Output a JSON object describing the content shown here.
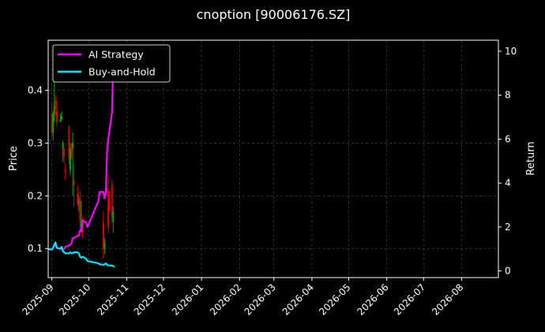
{
  "chart_data": {
    "type": "candlestick-with-lines",
    "title": "cnoption [90006176.SZ]",
    "ylabel_left": "Price",
    "ylabel_right": "Return",
    "ylim_left": [
      0.045,
      0.495
    ],
    "ylim_right": [
      -0.3,
      10.5
    ],
    "xlim": [
      "2025-08-29",
      "2026-08-31"
    ],
    "yticks_left": [
      0.1,
      0.2,
      0.3,
      0.4
    ],
    "ytick_labels_left": [
      "0.1",
      "0.2",
      "0.3",
      "0.4"
    ],
    "yticks_right": [
      0,
      2,
      4,
      6,
      8,
      10
    ],
    "ytick_labels_right": [
      "0",
      "2",
      "4",
      "6",
      "8",
      "10"
    ],
    "xticks": [
      "2025-09-01",
      "2025-10-01",
      "2025-11-01",
      "2025-12-01",
      "2026-01-01",
      "2026-02-01",
      "2026-03-01",
      "2026-04-01",
      "2026-05-01",
      "2026-06-01",
      "2026-07-01",
      "2026-08-01"
    ],
    "xtick_labels": [
      "2025-09",
      "2025-10",
      "2025-11",
      "2025-12",
      "2026-01",
      "2026-02",
      "2026-03",
      "2026-04",
      "2026-05",
      "2026-06",
      "2026-07",
      "2026-08"
    ],
    "grid": true,
    "legend_position": "top-left",
    "colors": {
      "background": "#000000",
      "text": "#ffffff",
      "grid": "#4d4d4d",
      "up": "#00aa00",
      "down": "#dd0000",
      "ai": "#ff00ff",
      "bh": "#00e5ff"
    },
    "series": [
      {
        "name": "AI Strategy",
        "axis": "right",
        "points": [
          [
            "2025-08-29",
            1.0
          ],
          [
            "2025-09-01",
            1.0
          ],
          [
            "2025-09-02",
            1.05
          ],
          [
            "2025-09-03",
            1.15
          ],
          [
            "2025-09-04",
            1.22
          ],
          [
            "2025-09-05",
            1.05
          ],
          [
            "2025-09-08",
            1.0
          ],
          [
            "2025-09-09",
            1.0
          ],
          [
            "2025-09-10",
            1.0
          ],
          [
            "2025-09-11",
            1.0
          ],
          [
            "2025-09-12",
            1.1
          ],
          [
            "2025-09-15",
            1.15
          ],
          [
            "2025-09-16",
            1.2
          ],
          [
            "2025-09-17",
            1.25
          ],
          [
            "2025-09-18",
            1.5
          ],
          [
            "2025-09-19",
            1.5
          ],
          [
            "2025-09-22",
            1.6
          ],
          [
            "2025-09-23",
            1.6
          ],
          [
            "2025-09-24",
            1.85
          ],
          [
            "2025-09-25",
            1.8
          ],
          [
            "2025-09-26",
            2.3
          ],
          [
            "2025-09-29",
            2.2
          ],
          [
            "2025-09-30",
            2.0
          ],
          [
            "2025-10-09",
            3.2
          ],
          [
            "2025-10-10",
            3.6
          ],
          [
            "2025-10-13",
            3.6
          ],
          [
            "2025-10-14",
            3.3
          ],
          [
            "2025-10-15",
            3.6
          ],
          [
            "2025-10-16",
            5.5
          ],
          [
            "2025-10-17",
            6.0
          ],
          [
            "2025-10-20",
            7.2
          ],
          [
            "2025-10-21",
            9.5
          ],
          [
            "2025-10-22",
            10.0
          ]
        ]
      },
      {
        "name": "Buy-and-Hold",
        "axis": "right",
        "points": [
          [
            "2025-08-29",
            1.0
          ],
          [
            "2025-09-01",
            0.97
          ],
          [
            "2025-09-02",
            1.05
          ],
          [
            "2025-09-03",
            1.2
          ],
          [
            "2025-09-04",
            1.3
          ],
          [
            "2025-09-05",
            1.05
          ],
          [
            "2025-09-08",
            1.02
          ],
          [
            "2025-09-09",
            1.1
          ],
          [
            "2025-09-10",
            0.9
          ],
          [
            "2025-09-11",
            0.85
          ],
          [
            "2025-09-12",
            0.8
          ],
          [
            "2025-09-15",
            0.8
          ],
          [
            "2025-09-16",
            0.85
          ],
          [
            "2025-09-17",
            0.8
          ],
          [
            "2025-09-18",
            0.8
          ],
          [
            "2025-09-19",
            0.85
          ],
          [
            "2025-09-22",
            0.85
          ],
          [
            "2025-09-23",
            0.8
          ],
          [
            "2025-09-24",
            0.65
          ],
          [
            "2025-09-25",
            0.6
          ],
          [
            "2025-09-26",
            0.65
          ],
          [
            "2025-09-29",
            0.55
          ],
          [
            "2025-09-30",
            0.45
          ],
          [
            "2025-10-09",
            0.35
          ],
          [
            "2025-10-10",
            0.3
          ],
          [
            "2025-10-13",
            0.28
          ],
          [
            "2025-10-14",
            0.3
          ],
          [
            "2025-10-15",
            0.35
          ],
          [
            "2025-10-16",
            0.28
          ],
          [
            "2025-10-17",
            0.25
          ],
          [
            "2025-10-20",
            0.25
          ],
          [
            "2025-10-21",
            0.22
          ],
          [
            "2025-10-22",
            0.18
          ]
        ]
      }
    ],
    "ohlc": [
      {
        "date": "2025-09-01",
        "open": 0.355,
        "high": 0.375,
        "low": 0.31,
        "close": 0.32
      },
      {
        "date": "2025-09-02",
        "open": 0.32,
        "high": 0.36,
        "low": 0.305,
        "close": 0.355
      },
      {
        "date": "2025-09-03",
        "open": 0.355,
        "high": 0.42,
        "low": 0.34,
        "close": 0.37
      },
      {
        "date": "2025-09-04",
        "open": 0.38,
        "high": 0.39,
        "low": 0.35,
        "close": 0.365
      },
      {
        "date": "2025-09-05",
        "open": 0.36,
        "high": 0.38,
        "low": 0.33,
        "close": 0.34
      },
      {
        "date": "2025-09-08",
        "open": 0.34,
        "high": 0.355,
        "low": 0.34,
        "close": 0.345
      },
      {
        "date": "2025-09-09",
        "open": 0.345,
        "high": 0.36,
        "low": 0.345,
        "close": 0.35
      },
      {
        "date": "2025-09-10",
        "open": 0.29,
        "high": 0.305,
        "low": 0.265,
        "close": 0.3
      },
      {
        "date": "2025-09-11",
        "open": 0.29,
        "high": 0.29,
        "low": 0.26,
        "close": 0.275
      },
      {
        "date": "2025-09-12",
        "open": 0.25,
        "high": 0.26,
        "low": 0.23,
        "close": 0.245
      },
      {
        "date": "2025-09-15",
        "open": 0.33,
        "high": 0.335,
        "low": 0.26,
        "close": 0.27
      },
      {
        "date": "2025-09-16",
        "open": 0.25,
        "high": 0.3,
        "low": 0.24,
        "close": 0.29
      },
      {
        "date": "2025-09-17",
        "open": 0.29,
        "high": 0.3,
        "low": 0.27,
        "close": 0.285
      },
      {
        "date": "2025-09-18",
        "open": 0.29,
        "high": 0.32,
        "low": 0.2,
        "close": 0.3
      },
      {
        "date": "2025-09-19",
        "open": 0.23,
        "high": 0.26,
        "low": 0.18,
        "close": 0.22
      },
      {
        "date": "2025-09-22",
        "open": 0.205,
        "high": 0.22,
        "low": 0.18,
        "close": 0.185
      },
      {
        "date": "2025-09-23",
        "open": 0.185,
        "high": 0.2,
        "low": 0.17,
        "close": 0.19
      },
      {
        "date": "2025-09-24",
        "open": 0.195,
        "high": 0.21,
        "low": 0.13,
        "close": 0.15
      },
      {
        "date": "2025-09-25",
        "open": 0.14,
        "high": 0.19,
        "low": 0.13,
        "close": 0.15
      },
      {
        "date": "2025-09-26",
        "open": 0.15,
        "high": 0.16,
        "low": 0.12,
        "close": 0.125
      },
      {
        "date": "2025-10-13",
        "open": 0.15,
        "high": 0.17,
        "low": 0.08,
        "close": 0.1
      },
      {
        "date": "2025-10-14",
        "open": 0.1,
        "high": 0.12,
        "low": 0.09,
        "close": 0.11
      },
      {
        "date": "2025-10-16",
        "open": 0.21,
        "high": 0.215,
        "low": 0.2,
        "close": 0.205
      },
      {
        "date": "2025-10-17",
        "open": 0.205,
        "high": 0.24,
        "low": 0.13,
        "close": 0.14
      },
      {
        "date": "2025-10-18",
        "open": 0.18,
        "high": 0.21,
        "low": 0.17,
        "close": 0.175
      },
      {
        "date": "2025-10-20",
        "open": 0.22,
        "high": 0.23,
        "low": 0.15,
        "close": 0.16
      },
      {
        "date": "2025-10-21",
        "open": 0.15,
        "high": 0.18,
        "low": 0.13,
        "close": 0.17
      }
    ],
    "legend": [
      {
        "label": "AI Strategy",
        "color": "#ff00ff"
      },
      {
        "label": "Buy-and-Hold",
        "color": "#00e5ff"
      }
    ]
  }
}
